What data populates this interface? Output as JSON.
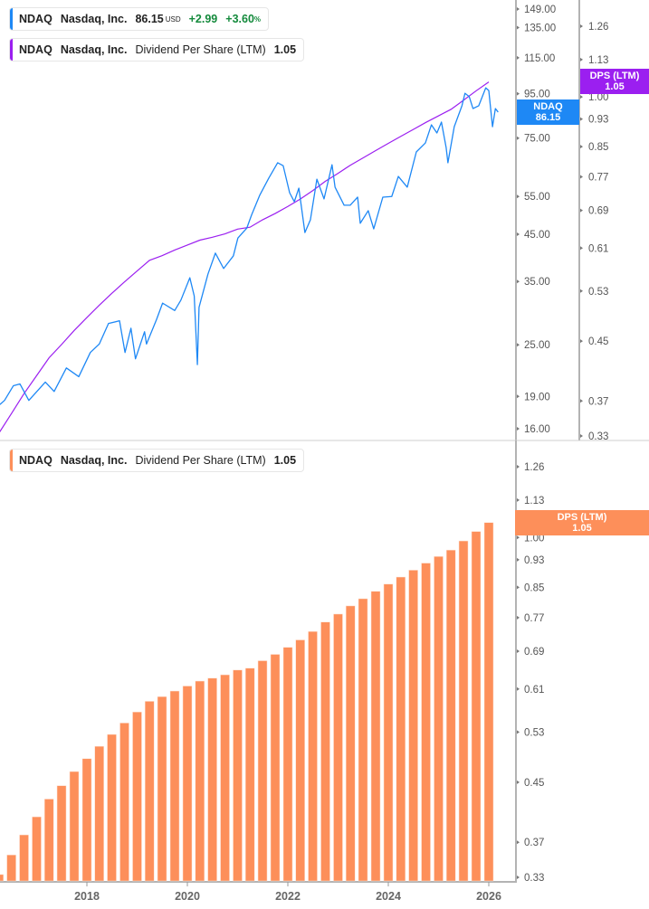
{
  "legends": {
    "price": {
      "ticker": "NDAQ",
      "company": "Nasdaq, Inc.",
      "price": "86.15",
      "currency": "USD",
      "change": "+2.99",
      "change_pct": "+3.60",
      "pct_sign": "%"
    },
    "dps_top": {
      "ticker": "NDAQ",
      "company": "Nasdaq, Inc.",
      "metric": "Dividend Per Share (LTM)",
      "value": "1.05"
    },
    "dps_bottom": {
      "ticker": "NDAQ",
      "company": "Nasdaq, Inc.",
      "metric": "Dividend Per Share (LTM)",
      "value": "1.05"
    }
  },
  "tags": {
    "price": {
      "line1": "NDAQ",
      "line2": "86.15"
    },
    "dps_top": {
      "line1": "DPS (LTM)",
      "line2": "1.05"
    },
    "dps_bottom": {
      "line1": "DPS (LTM)",
      "line2": "1.05"
    }
  },
  "colors": {
    "price": "#1e88f5",
    "dps_line": "#9b1ff0",
    "dps_bar": "#fd8f5a",
    "positive": "#148a3c",
    "axis": "#b3b3b3"
  },
  "chart_data": [
    {
      "type": "line",
      "scale": "log",
      "series": [
        {
          "name": "NDAQ",
          "axis": "price",
          "points": [
            [
              "2016-04-08",
              18.2
            ],
            [
              "2016-05-12",
              18.6
            ],
            [
              "2016-07-15",
              20.1
            ],
            [
              "2016-09-01",
              20.3
            ],
            [
              "2016-11-05",
              18.6
            ],
            [
              "2017-03-05",
              20.5
            ],
            [
              "2017-05-08",
              19.5
            ],
            [
              "2017-08-05",
              22.1
            ],
            [
              "2017-11-03",
              21.1
            ],
            [
              "2018-01-26",
              24.0
            ],
            [
              "2018-04-01",
              25.1
            ],
            [
              "2018-06-07",
              28.0
            ],
            [
              "2018-08-26",
              28.4
            ],
            [
              "2018-10-05",
              24.0
            ],
            [
              "2018-11-17",
              27.3
            ],
            [
              "2018-12-20",
              23.2
            ],
            [
              "2019-02-24",
              26.8
            ],
            [
              "2019-03-10",
              25.1
            ],
            [
              "2019-05-22",
              28.6
            ],
            [
              "2019-07-05",
              31.2
            ],
            [
              "2019-10-01",
              30.0
            ],
            [
              "2019-11-15",
              31.7
            ],
            [
              "2020-01-19",
              35.7
            ],
            [
              "2020-02-20",
              32.4
            ],
            [
              "2020-03-14",
              22.5
            ],
            [
              "2020-03-26",
              30.5
            ],
            [
              "2020-05-30",
              36.4
            ],
            [
              "2020-07-23",
              40.7
            ],
            [
              "2020-09-21",
              37.5
            ],
            [
              "2020-12-01",
              40.1
            ],
            [
              "2021-01-03",
              44.1
            ],
            [
              "2021-03-09",
              46.5
            ],
            [
              "2021-04-12",
              49.8
            ],
            [
              "2021-06-10",
              55.3
            ],
            [
              "2021-08-15",
              60.6
            ],
            [
              "2021-10-19",
              65.8
            ],
            [
              "2021-11-28",
              64.8
            ],
            [
              "2022-01-14",
              56.1
            ],
            [
              "2022-02-17",
              53.5
            ],
            [
              "2022-03-22",
              57.5
            ],
            [
              "2022-05-05",
              45.4
            ],
            [
              "2022-06-14",
              48.6
            ],
            [
              "2022-07-31",
              60.3
            ],
            [
              "2022-09-21",
              54.3
            ],
            [
              "2022-11-18",
              65.1
            ],
            [
              "2022-12-10",
              57.8
            ],
            [
              "2023-02-14",
              52.5
            ],
            [
              "2023-03-30",
              52.5
            ],
            [
              "2023-05-23",
              54.8
            ],
            [
              "2023-06-11",
              47.7
            ],
            [
              "2023-08-08",
              51.0
            ],
            [
              "2023-09-17",
              46.3
            ],
            [
              "2023-11-22",
              54.8
            ],
            [
              "2024-01-26",
              55.0
            ],
            [
              "2024-03-14",
              61.2
            ],
            [
              "2024-05-18",
              57.8
            ],
            [
              "2024-07-23",
              69.7
            ],
            [
              "2024-09-27",
              73.1
            ],
            [
              "2024-11-10",
              80.5
            ],
            [
              "2024-12-20",
              77.1
            ],
            [
              "2025-01-22",
              81.7
            ],
            [
              "2025-02-25",
              71.4
            ],
            [
              "2025-03-10",
              65.8
            ],
            [
              "2025-04-25",
              79.7
            ],
            [
              "2025-06-20",
              89.1
            ],
            [
              "2025-07-12",
              95.2
            ],
            [
              "2025-08-12",
              93.5
            ],
            [
              "2025-09-08",
              87.8
            ],
            [
              "2025-10-20",
              89.1
            ],
            [
              "2025-12-10",
              98.0
            ],
            [
              "2026-01-01",
              96.6
            ],
            [
              "2026-01-28",
              79.7
            ],
            [
              "2026-02-18",
              87.8
            ],
            [
              "2026-03-10",
              86.15
            ]
          ]
        },
        {
          "name": "Dividend Per Share (LTM)",
          "axis": "dps",
          "source": "dps_bars"
        }
      ],
      "price_axis": {
        "ticks": [
          "149.00",
          "135.00",
          "115.00",
          "95.00",
          "75.00",
          "55.00",
          "45.00",
          "35.00",
          "25.00",
          "19.00",
          "16.00"
        ],
        "range": [
          16,
          149
        ]
      },
      "dps_axis": {
        "ticks": [
          "1.26",
          "1.13",
          "1.00",
          "0.93",
          "0.85",
          "0.77",
          "0.69",
          "0.61",
          "0.53",
          "0.45",
          "0.37",
          "0.33"
        ],
        "range": [
          0.33,
          1.26
        ]
      }
    },
    {
      "type": "bar",
      "scale": "log",
      "id": "dps_bars",
      "x": [
        "2016-04",
        "2016-07",
        "2016-10",
        "2017-01",
        "2017-04",
        "2017-07",
        "2017-10",
        "2018-01",
        "2018-04",
        "2018-07",
        "2018-10",
        "2019-01",
        "2019-04",
        "2019-07",
        "2019-10",
        "2020-01",
        "2020-04",
        "2020-07",
        "2020-10",
        "2021-01",
        "2021-04",
        "2021-07",
        "2021-10",
        "2022-01",
        "2022-04",
        "2022-07",
        "2022-10",
        "2023-01",
        "2023-04",
        "2023-07",
        "2023-10",
        "2024-01",
        "2024-04",
        "2024-07",
        "2024-10",
        "2025-01",
        "2025-04",
        "2025-07",
        "2025-10",
        "2026-01"
      ],
      "values": [
        0.333,
        0.355,
        0.379,
        0.402,
        0.426,
        0.445,
        0.466,
        0.486,
        0.506,
        0.526,
        0.546,
        0.566,
        0.586,
        0.595,
        0.606,
        0.616,
        0.626,
        0.632,
        0.639,
        0.649,
        0.653,
        0.669,
        0.683,
        0.699,
        0.716,
        0.736,
        0.759,
        0.779,
        0.8,
        0.819,
        0.839,
        0.859,
        0.879,
        0.899,
        0.92,
        0.94,
        0.96,
        0.989,
        1.02,
        1.05
      ],
      "yaxis": {
        "ticks": [
          "1.26",
          "1.13",
          "1.00",
          "0.93",
          "0.85",
          "0.77",
          "0.69",
          "0.61",
          "0.53",
          "0.45",
          "0.37",
          "0.33"
        ],
        "range": [
          0.33,
          1.26
        ]
      },
      "xaxis": {
        "ticks": [
          "2018",
          "2020",
          "2022",
          "2024",
          "2026"
        ]
      }
    }
  ]
}
